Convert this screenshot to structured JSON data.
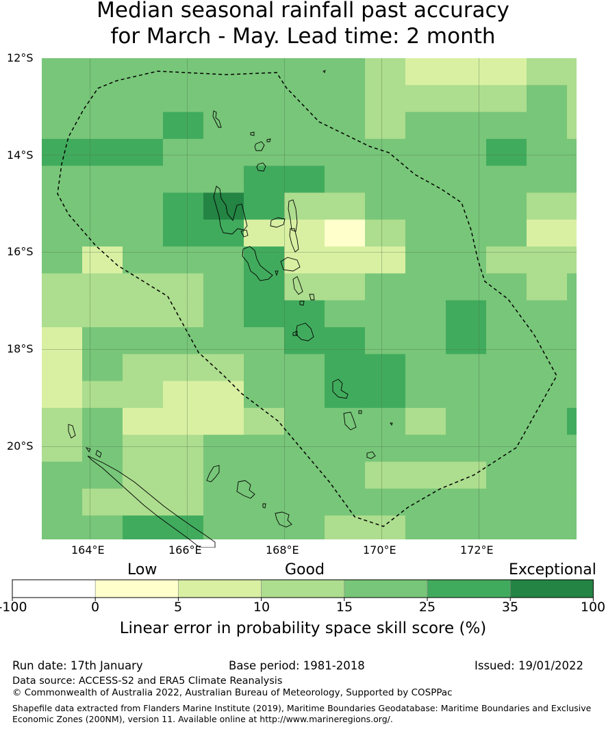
{
  "title": {
    "line1": "Median seasonal rainfall past accuracy",
    "line2": "for March - May. Lead time: 2 month"
  },
  "map": {
    "lat_labels": [
      "12°S",
      "14°S",
      "16°S",
      "18°S",
      "20°S"
    ],
    "lon_labels": [
      "164°E",
      "166°E",
      "168°E",
      "170°E",
      "172°E"
    ],
    "class_colors": {
      "0-5": "#ffffcc",
      "5-10": "#d9f0a3",
      "10-15": "#addd8e",
      "15-25": "#78c679",
      "25-35": "#41ab5d",
      "35-100": "#238443"
    },
    "boundary_style": "dashed black (EEZ)",
    "grid": true
  },
  "legend": {
    "category_low": "Low",
    "category_good": "Good",
    "category_exceptional": "Exceptional",
    "ticks": [
      "-100",
      "0",
      "5",
      "10",
      "15",
      "25",
      "35",
      "100"
    ],
    "colors": [
      "#ffffff",
      "#ffffcc",
      "#d9f0a3",
      "#addd8e",
      "#78c679",
      "#41ab5d",
      "#238443"
    ],
    "title": "Linear error in probability space skill score (%)"
  },
  "footer": {
    "run_date": "Run date: 17th January",
    "base_period": "Base period: 1981-2018",
    "issued": "Issued: 19/01/2022",
    "data_source": "Data source: ACCESS-S2 and ERA5 Climate Reanalysis",
    "copyright": "© Commonwealth of Australia 2022, Australian Bureau of Meteorology, Supported by COSPPac",
    "shapefile_line1": "Shapefile data extracted from Flanders Marine Institute (2019), Maritime Boundaries Geodatabase: Maritime Boundaries and Exclusive",
    "shapefile_line2": "Economic Zones (200NM), version 11. Available online at http://www.marineregions.org/."
  }
}
